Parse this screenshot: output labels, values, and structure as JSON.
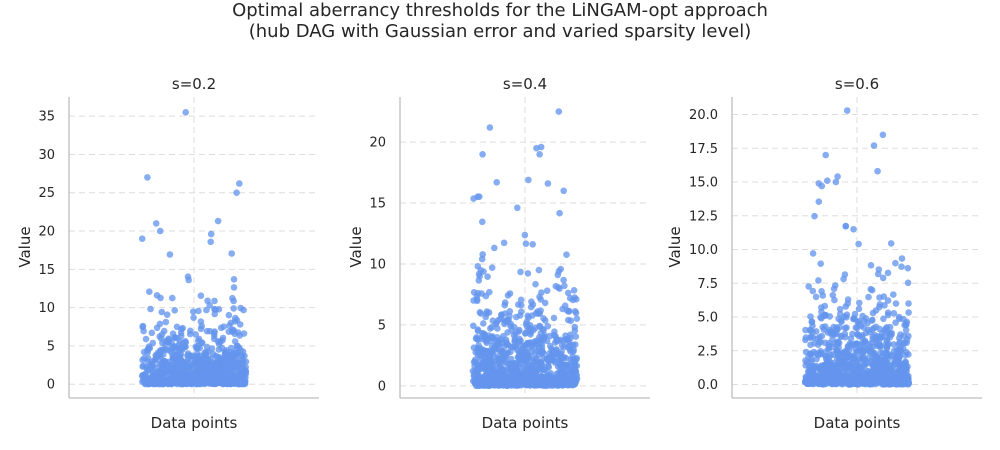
{
  "figure": {
    "title_line1": "Optimal aberrancy thresholds for the LiNGAM-opt approach",
    "title_line2": "(hub DAG with Gaussian error and varied sparsity level)"
  },
  "colors": {
    "points": "#6495ED",
    "grid": "#dddddd",
    "spine": "#bdbdbd",
    "text": "#262626"
  },
  "chart_data": [
    {
      "type": "scatter",
      "title": "s=0.2",
      "xlabel": "Data points",
      "ylabel": "Value",
      "ylim": [
        -1.8,
        37.5
      ],
      "yticks": [
        0,
        5,
        10,
        15,
        20,
        25,
        30,
        35
      ],
      "ytick_labels": [
        "0",
        "5",
        "10",
        "15",
        "20",
        "25",
        "30",
        "35"
      ],
      "grid": true,
      "point_count": 1000,
      "distribution": "strip plot (jittered), concentrated near 0, sparse upper tail",
      "outliers": [
        35.5,
        27.0,
        26.2,
        25.0,
        21.3,
        21.0,
        20.0,
        19.6,
        19.0,
        18.6
      ]
    },
    {
      "type": "scatter",
      "title": "s=0.4",
      "xlabel": "Data points",
      "ylabel": "Value",
      "ylim": [
        -1.0,
        23.7
      ],
      "yticks": [
        0,
        5,
        10,
        15,
        20
      ],
      "ytick_labels": [
        "0",
        "5",
        "10",
        "15",
        "20"
      ],
      "grid": true,
      "point_count": 1000,
      "distribution": "strip plot (jittered), concentrated near 0, sparse upper tail",
      "outliers": [
        22.5,
        21.2,
        19.6,
        19.5,
        19.0,
        19.0,
        16.9,
        16.7,
        16.6,
        16.0
      ]
    },
    {
      "type": "scatter",
      "title": "s=0.6",
      "xlabel": "Data points",
      "ylabel": "Value",
      "ylim": [
        -1.0,
        21.3
      ],
      "yticks": [
        0,
        2.5,
        5,
        7.5,
        10,
        12.5,
        15,
        17.5,
        20
      ],
      "ytick_labels": [
        "0.0",
        "2.5",
        "5.0",
        "7.5",
        "10.0",
        "12.5",
        "15.0",
        "17.5",
        "20.0"
      ],
      "grid": true,
      "point_count": 1000,
      "distribution": "strip plot (jittered), concentrated near 0, sparse upper tail",
      "outliers": [
        20.3,
        18.5,
        17.7,
        17.0,
        15.8,
        15.4,
        15.1,
        15.0,
        14.9,
        14.7
      ]
    }
  ]
}
